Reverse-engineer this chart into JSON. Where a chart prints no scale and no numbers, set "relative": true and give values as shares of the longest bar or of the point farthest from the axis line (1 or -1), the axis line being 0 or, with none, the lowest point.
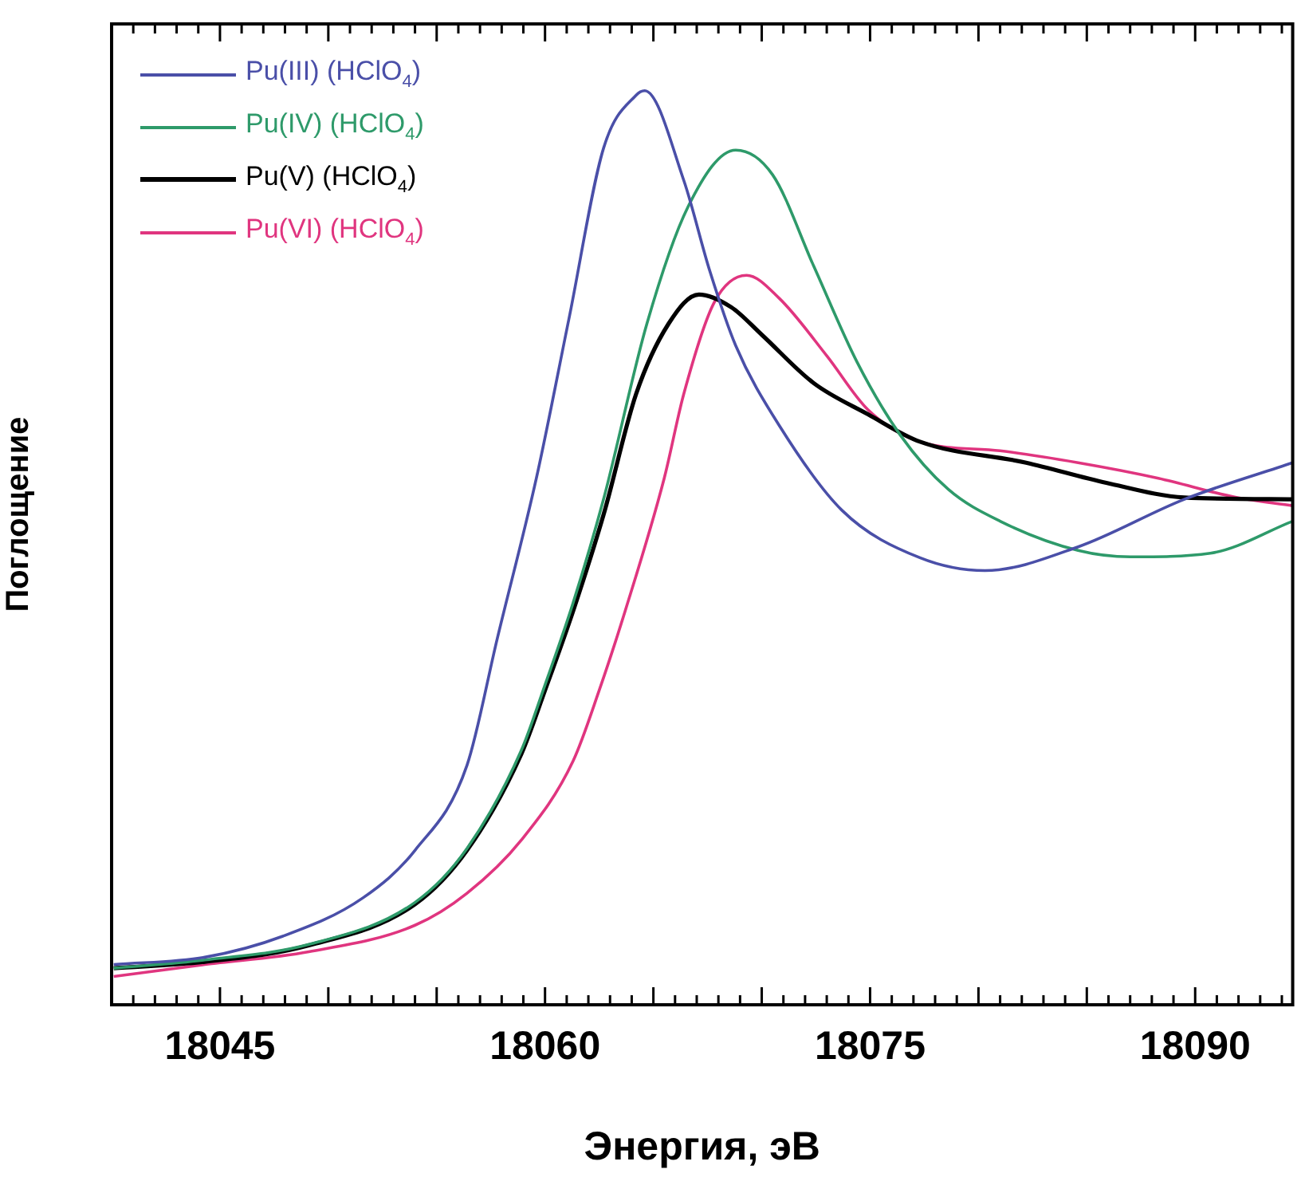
{
  "chart_data": {
    "type": "line",
    "relative": true,
    "xlabel": "Энергия, эВ",
    "ylabel": "Поглощение",
    "xlim": [
      18040,
      18094.5
    ],
    "xticks": [
      {
        "value": 18041,
        "label": null
      },
      {
        "value": 18042,
        "label": null
      },
      {
        "value": 18043,
        "label": null
      },
      {
        "value": 18044,
        "label": null
      },
      18045,
      {
        "value": 18046,
        "label": null
      },
      {
        "value": 18047,
        "label": null
      },
      {
        "value": 18048,
        "label": null
      },
      {
        "value": 18049,
        "label": null
      },
      {
        "value": 18050,
        "label": null
      },
      {
        "value": 18051,
        "label": null
      },
      {
        "value": 18052,
        "label": null
      },
      {
        "value": 18053,
        "label": null
      },
      {
        "value": 18054,
        "label": null
      },
      {
        "value": 18055,
        "label": null
      },
      {
        "value": 18056,
        "label": null
      },
      {
        "value": 18057,
        "label": null
      },
      {
        "value": 18058,
        "label": null
      },
      {
        "value": 18059,
        "label": null
      },
      18060,
      {
        "value": 18061,
        "label": null
      },
      {
        "value": 18062,
        "label": null
      },
      {
        "value": 18063,
        "label": null
      },
      {
        "value": 18064,
        "label": null
      },
      {
        "value": 18065,
        "label": null
      },
      {
        "value": 18066,
        "label": null
      },
      {
        "value": 18067,
        "label": null
      },
      {
        "value": 18068,
        "label": null
      },
      {
        "value": 18069,
        "label": null
      },
      {
        "value": 18070,
        "label": null
      },
      {
        "value": 18071,
        "label": null
      },
      {
        "value": 18072,
        "label": null
      },
      {
        "value": 18073,
        "label": null
      },
      {
        "value": 18074,
        "label": null
      },
      18075,
      {
        "value": 18076,
        "label": null
      },
      {
        "value": 18077,
        "label": null
      },
      {
        "value": 18078,
        "label": null
      },
      {
        "value": 18079,
        "label": null
      },
      {
        "value": 18080,
        "label": null
      },
      {
        "value": 18081,
        "label": null
      },
      {
        "value": 18082,
        "label": null
      },
      {
        "value": 18083,
        "label": null
      },
      {
        "value": 18084,
        "label": null
      },
      {
        "value": 18085,
        "label": null
      },
      {
        "value": 18086,
        "label": null
      },
      {
        "value": 18087,
        "label": null
      },
      {
        "value": 18088,
        "label": null
      },
      {
        "value": 18089,
        "label": null
      },
      18090,
      {
        "value": 18091,
        "label": null
      },
      {
        "value": 18092,
        "label": null
      },
      {
        "value": 18093,
        "label": null
      },
      {
        "value": 18094,
        "label": null
      }
    ],
    "grid": false,
    "legend": "top left",
    "marker": "none",
    "line_style": "solid",
    "series": [
      {
        "name": "Pu(III) (HClO$_{4}$)",
        "color": "#4a4fa8",
        "x": [
          18040.1,
          18044.3,
          18047.9,
          18051.6,
          18054,
          18056.4,
          18057.8,
          18059.6,
          18061.1,
          18062.7,
          18064.2,
          18064.6,
          18066.4,
          18067.6,
          18068.8,
          18070.8,
          18073.7,
          18077.3,
          18080.3,
          18084.6,
          18089.5,
          18094.5
        ],
        "values": [
          0.044,
          0.052,
          0.075,
          0.117,
          0.169,
          0.262,
          0.401,
          0.576,
          0.75,
          0.937,
          0.995,
          1,
          0.902,
          0.803,
          0.721,
          0.634,
          0.541,
          0.489,
          0.475,
          0.501,
          0.553,
          0.593
        ]
      },
      {
        "name": "Pu(IV) (HClO$_{4}$)",
        "color": "#2e9a6a",
        "x": [
          18040.1,
          18044.3,
          18049.1,
          18054,
          18056.4,
          18058.9,
          18060,
          18061.3,
          18062.7,
          18064.7,
          18066.6,
          18068.8,
          18070.5,
          18072.4,
          18074.4,
          18076.4,
          18078.6,
          18081,
          18084.6,
          18087,
          18090.7,
          18094.5
        ],
        "values": [
          0.04,
          0.049,
          0.066,
          0.112,
          0.171,
          0.278,
          0.35,
          0.44,
          0.553,
          0.745,
          0.873,
          0.935,
          0.908,
          0.808,
          0.703,
          0.623,
          0.564,
          0.529,
          0.497,
          0.49,
          0.494,
          0.529
        ]
      },
      {
        "name": "Pu(V) (HClO$_{4}$)",
        "color": "#000000",
        "x": [
          18040.1,
          18044.3,
          18049.1,
          18054,
          18056.4,
          18058.9,
          18060,
          18061.3,
          18062.7,
          18064.2,
          18065.7,
          18067.1,
          18068.6,
          18070,
          18072.4,
          18074.9,
          18077.3,
          18082.2,
          18085.9,
          18089.5,
          18094.5
        ],
        "values": [
          0.04,
          0.047,
          0.065,
          0.11,
          0.169,
          0.274,
          0.344,
          0.431,
          0.536,
          0.668,
          0.745,
          0.777,
          0.763,
          0.733,
          0.68,
          0.646,
          0.616,
          0.593,
          0.571,
          0.555,
          0.553
        ]
      },
      {
        "name": "Pu(VI) (HClO$_{4}$)",
        "color": "#e0357f",
        "x": [
          18040.1,
          18044.3,
          18049.1,
          18054,
          18056.4,
          18058.9,
          18061.3,
          18062.5,
          18063.7,
          18065.5,
          18066.4,
          18067.8,
          18069.3,
          18070.8,
          18073,
          18074.9,
          18077.3,
          18081,
          18084.6,
          18088.3,
          18091.9,
          18094.5
        ],
        "values": [
          0.031,
          0.044,
          0.058,
          0.087,
          0.122,
          0.18,
          0.267,
          0.344,
          0.431,
          0.576,
          0.668,
          0.768,
          0.798,
          0.773,
          0.71,
          0.651,
          0.616,
          0.606,
          0.593,
          0.576,
          0.555,
          0.546
        ]
      }
    ]
  }
}
